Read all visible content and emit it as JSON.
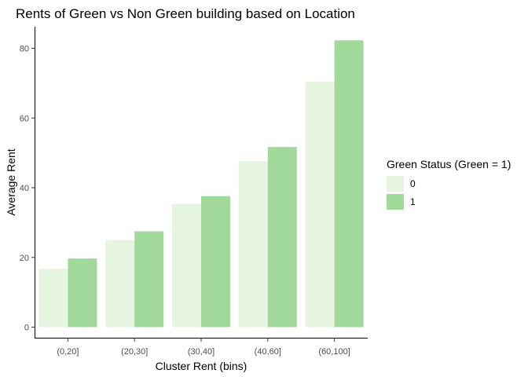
{
  "chart_data": {
    "type": "bar",
    "title": "Rents of Green vs Non Green building based on Location",
    "xlabel": "Cluster Rent (bins)",
    "ylabel": "Average Rent",
    "categories": [
      "(0,20]",
      "(20,30]",
      "(30,40]",
      "(40,60]",
      "(60,100]"
    ],
    "series": [
      {
        "name": "0",
        "values": [
          16.7,
          24.9,
          35.4,
          47.6,
          70.4
        ],
        "color": "#e5f5e0"
      },
      {
        "name": "1",
        "values": [
          19.7,
          27.5,
          37.6,
          51.7,
          82.3
        ],
        "color": "#a1d99b"
      }
    ],
    "ylim": [
      0,
      86
    ],
    "yticks": [
      0,
      20,
      40,
      60,
      80
    ],
    "legend": {
      "title": "Green Status (Green = 1)",
      "placement": "right"
    },
    "grid": false
  }
}
